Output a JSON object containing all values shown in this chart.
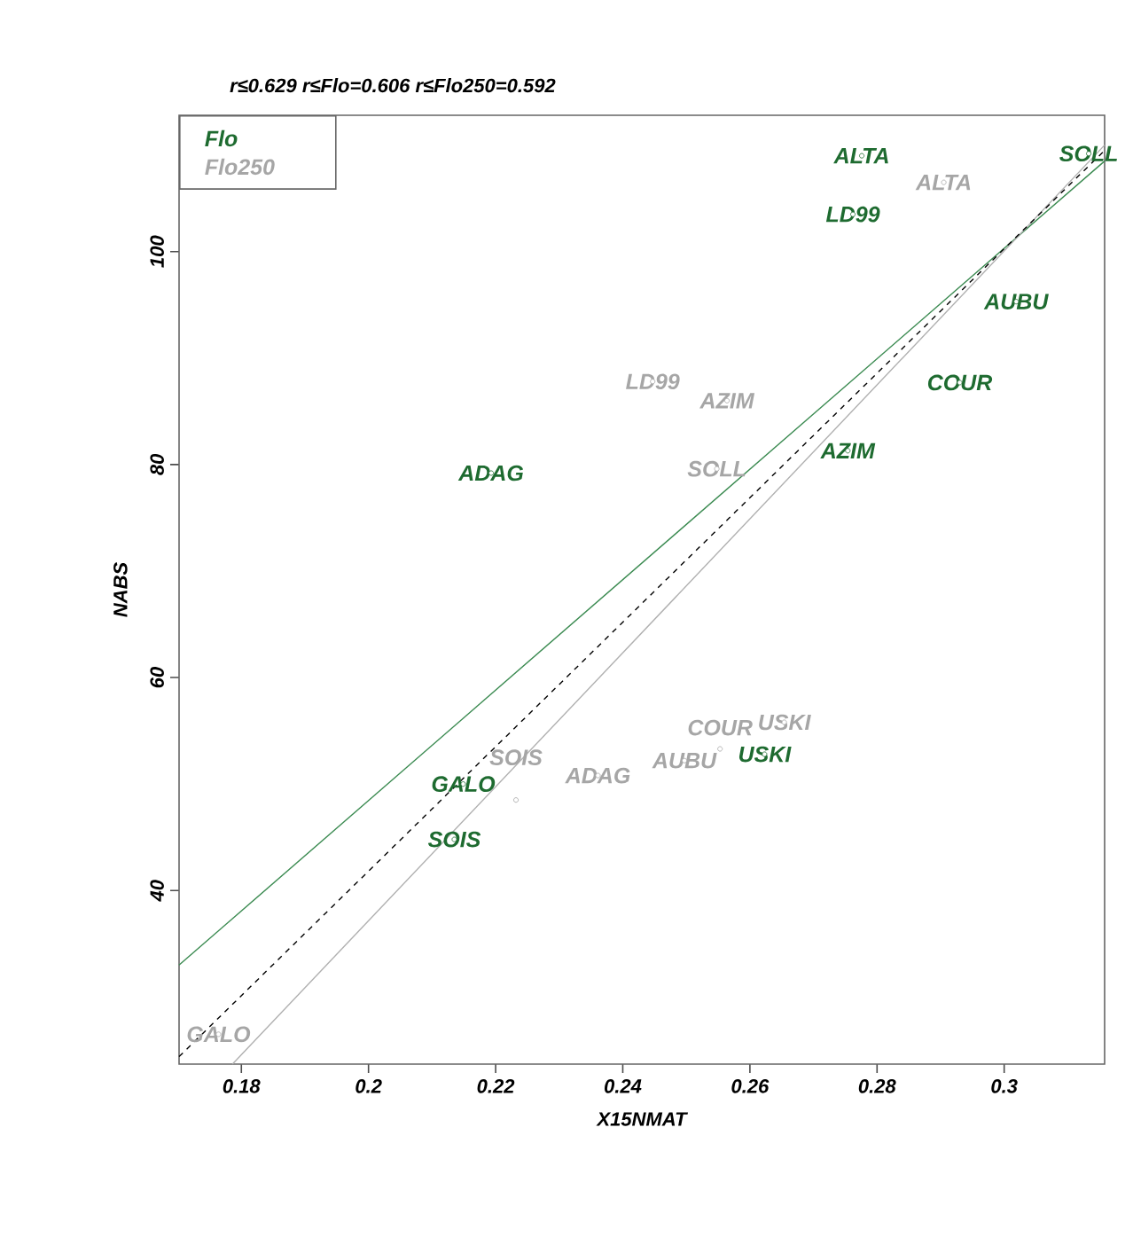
{
  "chart_data": {
    "type": "scatter",
    "title": "r≤0.629  r≤Flo=0.606  r≤Flo250=0.592",
    "xlabel": "X15NMAT",
    "ylabel": "NABS",
    "xlim": [
      0.1702,
      0.3158
    ],
    "ylim": [
      23.7,
      112.8
    ],
    "xticks": [
      0.18,
      0.2,
      0.22,
      0.24,
      0.26,
      0.28,
      0.3
    ],
    "yticks": [
      40,
      60,
      80,
      100
    ],
    "legend": "top left",
    "marker": "circle",
    "grid": false,
    "series": [
      {
        "name": "Flo",
        "color": "#1e6b30",
        "x": [
          0.2776,
          0.2762,
          0.3133,
          0.3019,
          0.293,
          0.2754,
          0.2193,
          0.2149,
          0.2135,
          0.2623
        ],
        "values": [
          109,
          103.5,
          109.2,
          95.3,
          87.7,
          81.3,
          79.2,
          50,
          44.8,
          52.8
        ]
      },
      {
        "name": "Flo250",
        "color": "#a6a6a6",
        "x": [
          0.2905,
          0.2447,
          0.2564,
          0.2548,
          0.2654,
          0.2553,
          0.2497,
          0.2361,
          0.2232,
          0.1764
        ],
        "values": [
          106.5,
          87.8,
          86,
          79.6,
          55.8,
          53.3,
          52.2,
          50.8,
          48.5,
          26.5
        ]
      },
      {
        "type": "line",
        "marker": "none",
        "color": "#3a8a50",
        "x": [
          0.1702,
          0.3158
        ],
        "values": [
          33,
          108.5
        ]
      },
      {
        "type": "line",
        "marker": "none",
        "color": "#b0b0b0",
        "x": [
          0.1786,
          0.3158
        ],
        "values": [
          23.7,
          110
        ]
      },
      {
        "type": "line",
        "marker": "none",
        "color": "#000000",
        "line_style": "dashed",
        "x": [
          0.1702,
          0.3158
        ],
        "values": [
          24.4,
          109.5
        ]
      }
    ],
    "annotations": [
      {
        "text": "ALTA",
        "x": 0.2776,
        "y": 109
      },
      {
        "text": "LD99",
        "x": 0.2762,
        "y": 103.5
      },
      {
        "text": "SOLL",
        "x": 0.3133,
        "y": 109.2
      },
      {
        "text": "AUBU",
        "x": 0.3019,
        "y": 95.3
      },
      {
        "text": "COUR",
        "x": 0.293,
        "y": 87.7
      },
      {
        "text": "AZIM",
        "x": 0.2754,
        "y": 81.3
      },
      {
        "text": "ADAG",
        "x": 0.2193,
        "y": 79.2
      },
      {
        "text": "GALO",
        "x": 0.2149,
        "y": 50
      },
      {
        "text": "SOIS",
        "x": 0.2135,
        "y": 44.8
      },
      {
        "text": "USKI",
        "x": 0.2623,
        "y": 52.8
      },
      {
        "text": "ALTA",
        "x": 0.2905,
        "y": 106.5
      },
      {
        "text": "LD99",
        "x": 0.2447,
        "y": 87.8
      },
      {
        "text": "AZIM",
        "x": 0.2564,
        "y": 86
      },
      {
        "text": "SOLL",
        "x": 0.2548,
        "y": 79.6
      },
      {
        "text": "USKI",
        "x": 0.2654,
        "y": 55.8
      },
      {
        "text": "COUR",
        "x": 0.2553,
        "y": 53.3
      },
      {
        "text": "AUBU",
        "x": 0.2497,
        "y": 52.2
      },
      {
        "text": "ADAG",
        "x": 0.2361,
        "y": 50.8
      },
      {
        "text": "SOIS",
        "x": 0.2232,
        "y": 48.5
      },
      {
        "text": "GALO",
        "x": 0.1764,
        "y": 26.5
      }
    ]
  }
}
